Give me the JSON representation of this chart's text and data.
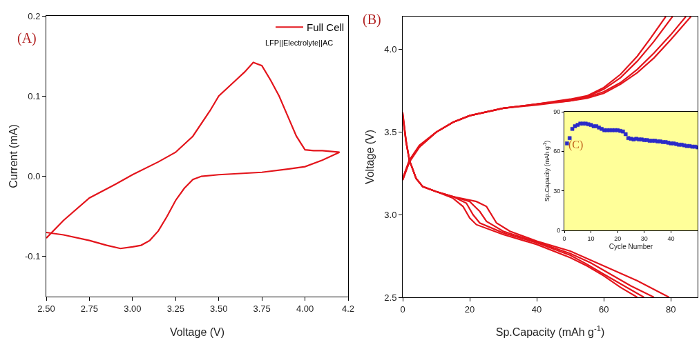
{
  "chart_data": [
    {
      "type": "line",
      "xlabel": "Voltage (V)",
      "ylabel": "Current (mA)",
      "legend": "top right",
      "grid": false,
      "line_style": "solid",
      "marker": "none",
      "xlim": [
        2.5,
        4.25
      ],
      "xticks": [
        {
          "value": 2.5,
          "label": "2.50"
        },
        {
          "value": 2.75,
          "label": "2.75"
        },
        {
          "value": 3,
          "label": "3.00"
        },
        {
          "value": 3.25,
          "label": "3.25"
        },
        {
          "value": 3.5,
          "label": "3.50"
        },
        {
          "value": 3.75,
          "label": "3.75"
        },
        {
          "value": 4,
          "label": "4.00"
        },
        {
          "value": 4.25,
          "label": "4.2"
        }
      ],
      "ylim": [
        -0.15,
        0.2
      ],
      "yticks": [
        {
          "value": -0.1,
          "label": "-0.1"
        },
        {
          "value": 0,
          "label": "0.0"
        },
        0.1,
        0.2
      ],
      "annotations": [
        "(A)",
        "LFP||Electrolyte||AC"
      ],
      "series": [
        {
          "name": "Full Cell",
          "color": "#e3141b",
          "x": [
            2.5,
            2.6,
            2.75,
            2.9,
            3.0,
            3.15,
            3.25,
            3.35,
            3.45,
            3.5,
            3.6,
            3.65,
            3.7,
            3.75,
            3.8,
            3.85,
            3.9,
            3.95,
            4.0,
            4.05,
            4.1,
            4.2,
            4.1,
            4.0,
            3.9,
            3.75,
            3.5,
            3.4,
            3.35,
            3.3,
            3.25,
            3.2,
            3.15,
            3.1,
            3.05,
            3.0,
            2.93,
            2.85,
            2.75,
            2.6,
            2.5
          ],
          "values": [
            -0.077,
            -0.055,
            -0.027,
            -0.01,
            0.002,
            0.018,
            0.03,
            0.05,
            0.082,
            0.1,
            0.12,
            0.13,
            0.142,
            0.138,
            0.12,
            0.1,
            0.075,
            0.05,
            0.033,
            0.032,
            0.032,
            0.03,
            0.02,
            0.012,
            0.009,
            0.005,
            0.002,
            0.0,
            -0.004,
            -0.015,
            -0.03,
            -0.05,
            -0.068,
            -0.08,
            -0.086,
            -0.088,
            -0.09,
            -0.086,
            -0.08,
            -0.073,
            -0.07
          ]
        }
      ]
    },
    {
      "type": "line",
      "xlabel": "Sp.Capacity (mAh g$^{-1}$)",
      "ylabel": "Voltage (V)",
      "legend": false,
      "grid": false,
      "line_style": "solid",
      "marker": "none",
      "xlim": [
        0,
        88
      ],
      "xticks": [
        0,
        20,
        40,
        60,
        80
      ],
      "ylim": [
        2.5,
        4.2
      ],
      "yticks": [
        2.5,
        {
          "value": 3,
          "label": "3.0"
        },
        3.5,
        {
          "value": 4,
          "label": "4.0"
        }
      ],
      "annotations": [
        "(B)"
      ],
      "series": [
        {
          "color": "#e3141b",
          "x": [
            0,
            2,
            5,
            10,
            15,
            20,
            30,
            40,
            50,
            55,
            60,
            65,
            70,
            74,
            78.5
          ],
          "values": [
            3.22,
            3.33,
            3.42,
            3.5,
            3.56,
            3.6,
            3.645,
            3.67,
            3.7,
            3.72,
            3.77,
            3.85,
            3.96,
            4.07,
            4.2
          ]
        },
        {
          "color": "#e3141b",
          "x": [
            0,
            2,
            5,
            10,
            15,
            20,
            30,
            40,
            50,
            55,
            60,
            65,
            70,
            75,
            80.5
          ],
          "values": [
            3.22,
            3.33,
            3.42,
            3.5,
            3.56,
            3.6,
            3.645,
            3.67,
            3.695,
            3.715,
            3.76,
            3.83,
            3.93,
            4.05,
            4.2
          ]
        },
        {
          "color": "#e3141b",
          "x": [
            0,
            2,
            5,
            10,
            15,
            20,
            30,
            40,
            50,
            55,
            60,
            65,
            70,
            75,
            80,
            84.5
          ],
          "values": [
            3.21,
            3.32,
            3.41,
            3.5,
            3.56,
            3.6,
            3.645,
            3.67,
            3.69,
            3.71,
            3.745,
            3.8,
            3.88,
            3.98,
            4.09,
            4.2
          ]
        },
        {
          "color": "#e3141b",
          "x": [
            0,
            2,
            5,
            10,
            15,
            20,
            30,
            40,
            50,
            55,
            60,
            65,
            70,
            75,
            80,
            86
          ],
          "values": [
            3.21,
            3.32,
            3.41,
            3.5,
            3.56,
            3.6,
            3.645,
            3.665,
            3.69,
            3.705,
            3.735,
            3.79,
            3.86,
            3.95,
            4.06,
            4.2
          ]
        },
        {
          "color": "#e3141b",
          "x": [
            0,
            1,
            2,
            4,
            6,
            10,
            15,
            18,
            20,
            22,
            30,
            40,
            50,
            55,
            60,
            65,
            70
          ],
          "values": [
            3.62,
            3.45,
            3.33,
            3.22,
            3.17,
            3.14,
            3.1,
            3.05,
            2.98,
            2.94,
            2.88,
            2.82,
            2.74,
            2.69,
            2.63,
            2.56,
            2.5
          ]
        },
        {
          "color": "#e3141b",
          "x": [
            0,
            1,
            2,
            4,
            6,
            10,
            15,
            19,
            21,
            23,
            30,
            40,
            50,
            55,
            60,
            66,
            72
          ],
          "values": [
            3.61,
            3.45,
            3.33,
            3.22,
            3.17,
            3.14,
            3.11,
            3.07,
            3.0,
            2.95,
            2.89,
            2.83,
            2.755,
            2.7,
            2.64,
            2.57,
            2.5
          ]
        },
        {
          "color": "#e3141b",
          "x": [
            0,
            1,
            2,
            4,
            6,
            10,
            15,
            20,
            23,
            25,
            30,
            40,
            50,
            56,
            62,
            68,
            75
          ],
          "values": [
            3.6,
            3.44,
            3.33,
            3.22,
            3.17,
            3.14,
            3.11,
            3.08,
            3.02,
            2.96,
            2.9,
            2.835,
            2.765,
            2.71,
            2.64,
            2.57,
            2.5
          ]
        },
        {
          "color": "#e3141b",
          "x": [
            0,
            1,
            2,
            4,
            6,
            10,
            15,
            22,
            25,
            28,
            32,
            40,
            50,
            60,
            70,
            79.5
          ],
          "values": [
            3.6,
            3.44,
            3.33,
            3.22,
            3.17,
            3.14,
            3.11,
            3.08,
            3.05,
            2.95,
            2.9,
            2.84,
            2.78,
            2.69,
            2.6,
            2.5
          ]
        }
      ]
    },
    {
      "type": "scatter",
      "xlabel": "Cycle Number",
      "ylabel": "Sp.Capacity (mAh g$^{-1}$)",
      "legend": false,
      "grid": false,
      "marker": "square",
      "xlim": [
        0,
        50
      ],
      "xticks": [
        0,
        10,
        20,
        30,
        40
      ],
      "ylim": [
        0,
        90
      ],
      "yticks": [
        0,
        30,
        60,
        90
      ],
      "annotations": [
        "(C)"
      ],
      "series": [
        {
          "color": "#2b2bc8",
          "x": [
            1,
            2,
            3,
            4,
            5,
            6,
            7,
            8,
            9,
            10,
            11,
            12,
            13,
            14,
            15,
            16,
            17,
            18,
            19,
            20,
            21,
            22,
            23,
            24,
            25,
            26,
            27,
            28,
            29,
            30,
            31,
            32,
            33,
            34,
            35,
            36,
            37,
            38,
            39,
            40,
            41,
            42,
            43,
            44,
            45,
            46,
            47,
            48,
            49,
            50
          ],
          "values": [
            66,
            70,
            77,
            79,
            80,
            81,
            81,
            81,
            80.5,
            80,
            79,
            79,
            78,
            77,
            76,
            76,
            76,
            76,
            76,
            76,
            75.5,
            75,
            73,
            70,
            69.5,
            69,
            69.5,
            69,
            69,
            68.5,
            68.5,
            68,
            68,
            68,
            67.5,
            67.5,
            67,
            67,
            66.5,
            66,
            66,
            65.5,
            65,
            65,
            64.5,
            64,
            64,
            63.5,
            63.5,
            63
          ]
        }
      ]
    }
  ]
}
